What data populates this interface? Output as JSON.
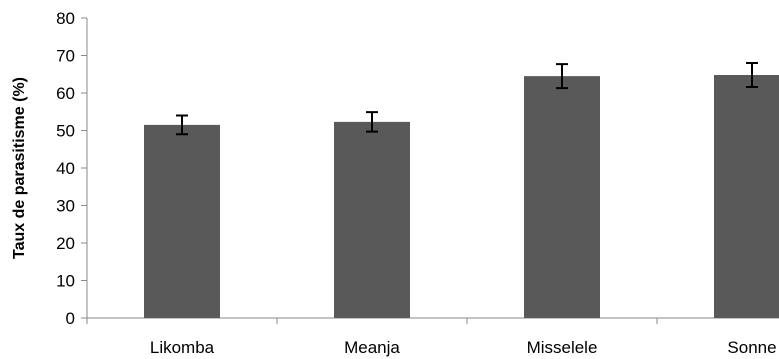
{
  "chart_data": {
    "type": "bar",
    "title": "",
    "xlabel": "",
    "ylabel": "Taux de parasitisme (%)",
    "categories": [
      "Likomba",
      "Meanja",
      "Misselele",
      "Sonne"
    ],
    "values": [
      51.5,
      52.3,
      64.5,
      64.8
    ],
    "error": [
      2.5,
      2.6,
      3.2,
      3.2
    ],
    "ylim": [
      0,
      80
    ],
    "yticks": [
      0,
      10,
      20,
      30,
      40,
      50,
      60,
      70,
      80
    ],
    "bar_color": "#595959",
    "grid": false,
    "legend": "none"
  }
}
